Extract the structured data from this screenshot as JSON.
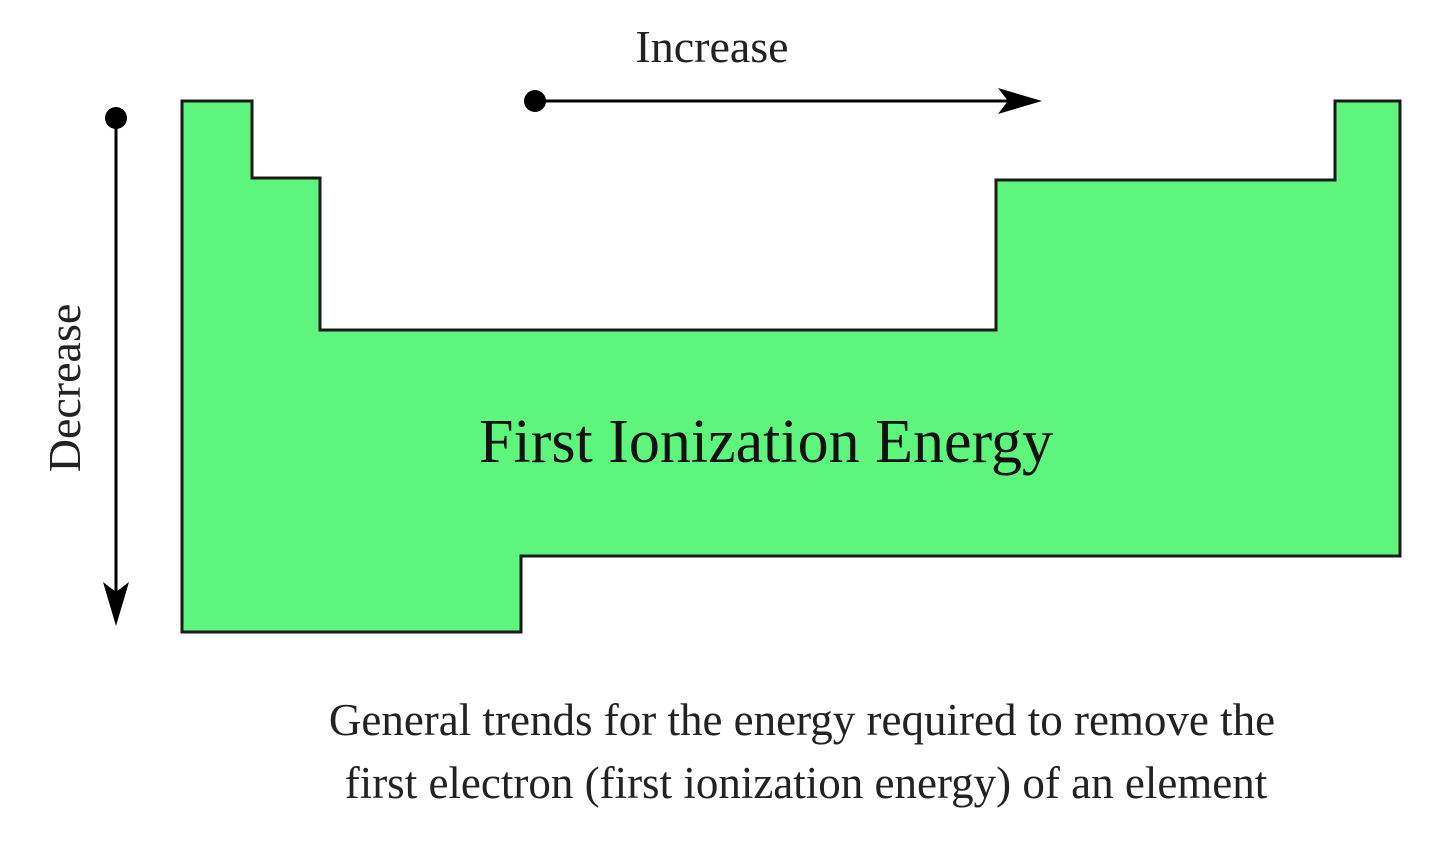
{
  "labels": {
    "horizontal": "Increase",
    "vertical": "Decrease",
    "center": "First Ionization Energy"
  },
  "caption": {
    "line1": "General trends for the energy required to remove the",
    "line2": "first electron (first ionization energy) of an element"
  }
}
